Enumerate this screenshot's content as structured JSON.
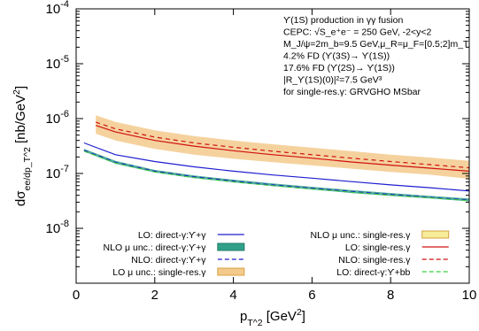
{
  "chart_data": {
    "type": "line",
    "title": "",
    "xlabel": "p_T^2 [GeV^2]",
    "ylabel": "dσ_ee/dp_T^2 [nb/GeV^2]",
    "xlim": [
      0,
      10
    ],
    "ylim": [
      1e-09,
      0.0001
    ],
    "ylog": true,
    "grid": false,
    "legend_position": "bottom",
    "x_ticks": [
      0,
      2,
      4,
      6,
      8,
      10
    ],
    "y_tick_exponents": [
      -8,
      -7,
      -6,
      -5,
      -4
    ],
    "annotations": [
      "ϒ(1S) production in γγ fusion",
      "CEPC: √S_e⁺e⁻ = 250 GeV, -2<y<2",
      "M_J/ψ=2m_b=9.5 GeV,μ_R=μ_F=[0.5;2]m_T",
      "4.2% FD (ϒ(3S)→ ϒ(1S))",
      "17.6% FD (ϒ(2S)→ ϒ(1S))",
      "|R_ϒ(1S)(0)|²=7.5 GeV³",
      "for single-res.γ: GRVGHO MSbar"
    ],
    "series": [
      {
        "name": "LO: direct-γ:ϒ+γ",
        "style": "solid",
        "color": "#1f1fd0",
        "x": [
          0.2,
          1,
          2,
          3,
          4,
          5,
          6,
          7,
          8,
          9,
          10
        ],
        "y": [
          3.6e-07,
          2.2e-07,
          1.65e-07,
          1.32e-07,
          1.1e-07,
          9.4e-08,
          8.2e-08,
          7.1e-08,
          6.2e-08,
          5.5e-08,
          4.8e-08
        ]
      },
      {
        "name": "NLO μ unc.: direct-γ:ϒ+γ",
        "style": "band",
        "color": "#31a189",
        "x": [
          0.2,
          1,
          2,
          3,
          4,
          5,
          6,
          7,
          8,
          9,
          10
        ],
        "y_low": [
          2.5e-07,
          1.5e-07,
          1.04e-07,
          8.2e-08,
          6.9e-08,
          5.9e-08,
          5.1e-08,
          4.4e-08,
          3.9e-08,
          3.5e-08,
          3.1e-08
        ],
        "y_high": [
          2.8e-07,
          1.7e-07,
          1.16e-07,
          9.2e-08,
          7.7e-08,
          6.6e-08,
          5.7e-08,
          5e-08,
          4.4e-08,
          3.9e-08,
          3.5e-08
        ]
      },
      {
        "name": "NLO: direct-γ:ϒ+γ",
        "style": "dashed",
        "color": "#1f1fd0",
        "x": [
          0.2,
          1,
          2,
          3,
          4,
          5,
          6,
          7,
          8,
          9,
          10
        ],
        "y": [
          2.65e-07,
          1.6e-07,
          1.1e-07,
          8.7e-08,
          7.3e-08,
          6.2e-08,
          5.4e-08,
          4.7e-08,
          4.15e-08,
          3.7e-08,
          3.3e-08
        ]
      },
      {
        "name": "LO μ unc.: single-res.γ",
        "style": "band",
        "color": "#f3ca8c",
        "x": [
          0.5,
          1,
          2,
          3,
          4,
          5,
          6,
          7,
          8,
          9,
          10
        ],
        "y_low": [
          5.3e-07,
          4e-07,
          2.8e-07,
          2.2e-07,
          1.85e-07,
          1.6e-07,
          1.4e-07,
          1.22e-07,
          1.07e-07,
          9.5e-08,
          8e-08
        ],
        "y_high": [
          1.15e-06,
          8.7e-07,
          6.1e-07,
          4.8e-07,
          4e-07,
          3.4e-07,
          2.95e-07,
          2.55e-07,
          2.2e-07,
          1.95e-07,
          1.7e-07
        ]
      },
      {
        "name": "NLO μ unc.: single-res.γ",
        "style": "band",
        "color": "#f6ec9a",
        "x": [],
        "y_low": [],
        "y_high": []
      },
      {
        "name": "LO: single-res.γ",
        "style": "solid",
        "color": "#d01010",
        "x": [
          0.5,
          1,
          2,
          3,
          4,
          5,
          6,
          7,
          8,
          9,
          10
        ],
        "y": [
          7.5e-07,
          5.7e-07,
          4e-07,
          3.15e-07,
          2.6e-07,
          2.2e-07,
          1.9e-07,
          1.62e-07,
          1.42e-07,
          1.25e-07,
          1.1e-07
        ]
      },
      {
        "name": "NLO: single-res.γ",
        "style": "dashed",
        "color": "#d01010",
        "x": [
          0.5,
          1,
          2,
          3,
          4,
          5,
          6,
          7,
          8,
          9,
          10
        ],
        "y": [
          8.6e-07,
          6.5e-07,
          4.6e-07,
          3.6e-07,
          3e-07,
          2.55e-07,
          2.2e-07,
          1.9e-07,
          1.65e-07,
          1.45e-07,
          1.27e-07
        ]
      },
      {
        "name": "LO: direct-γ:ϒ+bb",
        "style": "dashed",
        "color": "#3ccf3c",
        "x": [
          0.2,
          1,
          2,
          3,
          4,
          5,
          6,
          7,
          8,
          9,
          10
        ],
        "y": [
          2.55e-07,
          1.55e-07,
          1.06e-07,
          8.4e-08,
          7e-08,
          6e-08,
          5.2e-08,
          4.55e-08,
          4e-08,
          3.6e-08,
          3.2e-08
        ]
      }
    ]
  }
}
